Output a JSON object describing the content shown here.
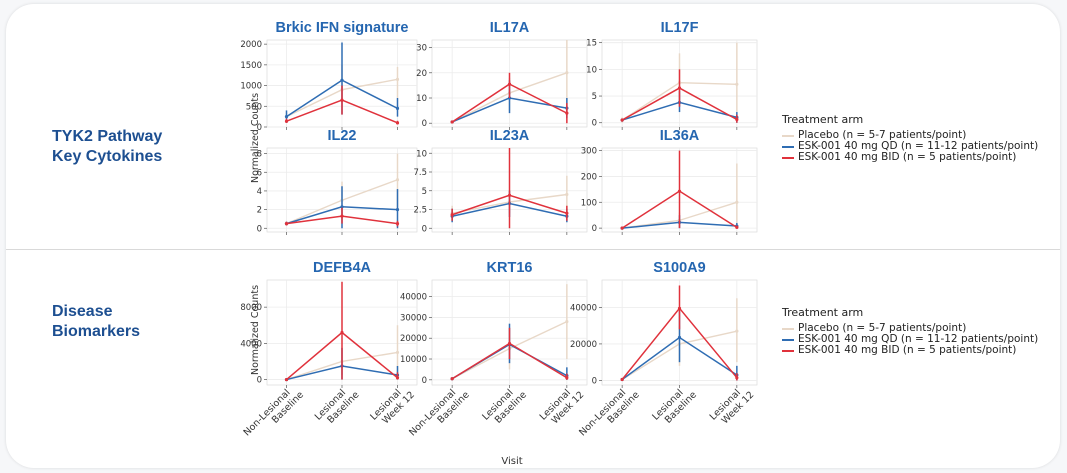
{
  "sections": [
    {
      "label": "TYK2 Pathway\nKey Cytokines"
    },
    {
      "label": "Disease\nBiomarkers"
    }
  ],
  "x_axis_title": "Visit",
  "y_axis_title": "Normalized Counts",
  "x_categories": [
    "Non-Lesional Baseline",
    "Lesional Baseline",
    "Lesional Week 12"
  ],
  "legend": {
    "title": "Treatment arm",
    "entries": [
      {
        "label": "Placebo (n = 5-7 patients/point)",
        "color": "#e8d8c8"
      },
      {
        "label": "ESK-001 40 mg QD (n = 11-12 patients/point)",
        "color": "#2f6db3"
      },
      {
        "label": "ESK-001 40 mg BID (n = 5 patients/point)",
        "color": "#e0323c"
      }
    ]
  },
  "chart_data": [
    {
      "type": "line",
      "title": "Brkic IFN signature",
      "categories": [
        "Non-Lesional Baseline",
        "Lesional Baseline",
        "Lesional Week 12"
      ],
      "ylim": [
        0,
        2100
      ],
      "yticks": [
        0,
        500,
        1000,
        1500,
        2000
      ],
      "series": [
        {
          "name": "Placebo (n = 5-7 patients/point)",
          "values": [
            250,
            900,
            1150
          ],
          "errors": [
            [
              200,
              350
            ],
            [
              600,
              1500
            ],
            [
              700,
              1450
            ]
          ]
        },
        {
          "name": "ESK-001 40 mg QD (n = 11-12 patients/point)",
          "values": [
            250,
            1130,
            450
          ],
          "errors": [
            [
              100,
              400
            ],
            [
              300,
              2040
            ],
            [
              250,
              700
            ]
          ]
        },
        {
          "name": "ESK-001 40 mg BID (n = 5 patients/point)",
          "values": [
            140,
            650,
            100
          ],
          "errors": [
            [
              100,
              200
            ],
            [
              300,
              1000
            ],
            [
              60,
              150
            ]
          ]
        }
      ]
    },
    {
      "type": "line",
      "title": "IL17A",
      "categories": [
        "Non-Lesional Baseline",
        "Lesional Baseline",
        "Lesional Week 12"
      ],
      "ylim": [
        -1.5,
        33
      ],
      "yticks": [
        0,
        10,
        20,
        30
      ],
      "series": [
        {
          "name": "Placebo (n = 5-7 patients/point)",
          "values": [
            0.5,
            12,
            20
          ],
          "errors": [
            [
              0,
              1
            ],
            [
              5,
              18
            ],
            [
              5,
              33
            ]
          ]
        },
        {
          "name": "ESK-001 40 mg QD (n = 11-12 patients/point)",
          "values": [
            0.5,
            10,
            6
          ],
          "errors": [
            [
              0,
              1
            ],
            [
              4,
              17
            ],
            [
              2,
              10
            ]
          ]
        },
        {
          "name": "ESK-001 40 mg BID (n = 5 patients/point)",
          "values": [
            0.5,
            15.5,
            4
          ],
          "errors": [
            [
              0,
              1
            ],
            [
              10,
              20
            ],
            [
              0,
              8
            ]
          ]
        }
      ]
    },
    {
      "type": "line",
      "title": "IL17F",
      "categories": [
        "Non-Lesional Baseline",
        "Lesional Baseline",
        "Lesional Week 12"
      ],
      "ylim": [
        -0.8,
        15.5
      ],
      "yticks": [
        0,
        5,
        10,
        15
      ],
      "series": [
        {
          "name": "Placebo (n = 5-7 patients/point)",
          "values": [
            0.5,
            7.5,
            7.2
          ],
          "errors": [
            [
              0,
              1
            ],
            [
              3,
              13
            ],
            [
              2,
              15
            ]
          ]
        },
        {
          "name": "ESK-001 40 mg QD (n = 11-12 patients/point)",
          "values": [
            0.5,
            3.8,
            1
          ],
          "errors": [
            [
              0.2,
              0.8
            ],
            [
              2,
              6
            ],
            [
              0,
              2
            ]
          ]
        },
        {
          "name": "ESK-001 40 mg BID (n = 5 patients/point)",
          "values": [
            0.5,
            6.5,
            0.6
          ],
          "errors": [
            [
              0.2,
              0.8
            ],
            [
              3,
              10
            ],
            [
              0,
              1.5
            ]
          ]
        }
      ]
    },
    {
      "type": "line",
      "title": "IL22",
      "categories": [
        "Non-Lesional Baseline",
        "Lesional Baseline",
        "Lesional Week 12"
      ],
      "ylim": [
        -0.4,
        8.6
      ],
      "yticks": [
        0,
        2,
        4,
        6,
        8
      ],
      "series": [
        {
          "name": "Placebo (n = 5-7 patients/point)",
          "values": [
            0.5,
            3,
            5.2
          ],
          "errors": [
            [
              0.3,
              0.7
            ],
            [
              1,
              5
            ],
            [
              2,
              8
            ]
          ]
        },
        {
          "name": "ESK-001 40 mg QD (n = 11-12 patients/point)",
          "values": [
            0.5,
            2.3,
            2
          ],
          "errors": [
            [
              0.3,
              0.7
            ],
            [
              0,
              4.5
            ],
            [
              0,
              4.2
            ]
          ]
        },
        {
          "name": "ESK-001 40 mg BID (n = 5 patients/point)",
          "values": [
            0.5,
            1.3,
            0.5
          ],
          "errors": [
            [
              0.3,
              0.7
            ],
            [
              0.5,
              2.2
            ],
            [
              0.2,
              0.8
            ]
          ]
        }
      ]
    },
    {
      "type": "line",
      "title": "IL23A",
      "categories": [
        "Non-Lesional Baseline",
        "Lesional Baseline",
        "Lesional Week 12"
      ],
      "ylim": [
        -0.5,
        10.7
      ],
      "yticks": [
        0,
        2.5,
        5,
        7.5,
        10
      ],
      "series": [
        {
          "name": "Placebo (n = 5-7 patients/point)",
          "values": [
            2,
            3.5,
            4.5
          ],
          "errors": [
            [
              1,
              3
            ],
            [
              2,
              5
            ],
            [
              2,
              7
            ]
          ]
        },
        {
          "name": "ESK-001 40 mg QD (n = 11-12 patients/point)",
          "values": [
            1.6,
            3.3,
            1.6
          ],
          "errors": [
            [
              0.8,
              2.6
            ],
            [
              1.5,
              5
            ],
            [
              0.8,
              2.6
            ]
          ]
        },
        {
          "name": "ESK-001 40 mg BID (n = 5 patients/point)",
          "values": [
            1.8,
            4.4,
            2
          ],
          "errors": [
            [
              1,
              2.6
            ],
            [
              0,
              10.7
            ],
            [
              1,
              3
            ]
          ]
        }
      ]
    },
    {
      "type": "line",
      "title": "IL36A",
      "categories": [
        "Non-Lesional Baseline",
        "Lesional Baseline",
        "Lesional Week 12"
      ],
      "ylim": [
        -15,
        310
      ],
      "yticks": [
        0,
        100,
        200,
        300
      ],
      "series": [
        {
          "name": "Placebo (n = 5-7 patients/point)",
          "values": [
            0,
            30,
            100
          ],
          "errors": [
            [
              0,
              5
            ],
            [
              5,
              60
            ],
            [
              20,
              250
            ]
          ]
        },
        {
          "name": "ESK-001 40 mg QD (n = 11-12 patients/point)",
          "values": [
            0,
            22,
            8
          ],
          "errors": [
            [
              0,
              5
            ],
            [
              0,
              50
            ],
            [
              0,
              20
            ]
          ]
        },
        {
          "name": "ESK-001 40 mg BID (n = 5 patients/point)",
          "values": [
            0,
            143,
            3
          ],
          "errors": [
            [
              0,
              5
            ],
            [
              0,
              300
            ],
            [
              0,
              10
            ]
          ]
        }
      ]
    },
    {
      "type": "line",
      "title": "DEFB4A",
      "categories": [
        "Non-Lesional Baseline",
        "Lesional Baseline",
        "Lesional Week 12"
      ],
      "ylim": [
        -600,
        11000
      ],
      "yticks": [
        0,
        4000,
        8000
      ],
      "series": [
        {
          "name": "Placebo (n = 5-7 patients/point)",
          "values": [
            0,
            2000,
            3000
          ],
          "errors": [
            [
              0,
              100
            ],
            [
              500,
              3500
            ],
            [
              500,
              6000
            ]
          ]
        },
        {
          "name": "ESK-001 40 mg QD (n = 11-12 patients/point)",
          "values": [
            0,
            1500,
            500
          ],
          "errors": [
            [
              0,
              100
            ],
            [
              0,
              3500
            ],
            [
              0,
              1500
            ]
          ]
        },
        {
          "name": "ESK-001 40 mg BID (n = 5 patients/point)",
          "values": [
            0,
            5200,
            200
          ],
          "errors": [
            [
              0,
              100
            ],
            [
              0,
              10800
            ],
            [
              0,
              800
            ]
          ]
        }
      ]
    },
    {
      "type": "line",
      "title": "KRT16",
      "categories": [
        "Non-Lesional Baseline",
        "Lesional Baseline",
        "Lesional Week 12"
      ],
      "ylim": [
        -2500,
        48000
      ],
      "yticks": [
        0,
        10000,
        20000,
        30000,
        40000
      ],
      "series": [
        {
          "name": "Placebo (n = 5-7 patients/point)",
          "values": [
            500,
            15000,
            28000
          ],
          "errors": [
            [
              0,
              1000
            ],
            [
              5000,
              25000
            ],
            [
              10000,
              46000
            ]
          ]
        },
        {
          "name": "ESK-001 40 mg QD (n = 11-12 patients/point)",
          "values": [
            500,
            17000,
            2000
          ],
          "errors": [
            [
              0,
              1000
            ],
            [
              8000,
              27000
            ],
            [
              0,
              6000
            ]
          ]
        },
        {
          "name": "ESK-001 40 mg BID (n = 5 patients/point)",
          "values": [
            500,
            17500,
            1000
          ],
          "errors": [
            [
              0,
              1000
            ],
            [
              10000,
              25000
            ],
            [
              0,
              3000
            ]
          ]
        }
      ]
    },
    {
      "type": "line",
      "title": "S100A9",
      "categories": [
        "Non-Lesional Baseline",
        "Lesional Baseline",
        "Lesional Week 12"
      ],
      "ylim": [
        -2500,
        55000
      ],
      "yticks": [
        0,
        20000,
        40000
      ],
      "series": [
        {
          "name": "Placebo (n = 5-7 patients/point)",
          "values": [
            500,
            20000,
            27000
          ],
          "errors": [
            [
              0,
              1000
            ],
            [
              8000,
              30000
            ],
            [
              10000,
              45000
            ]
          ]
        },
        {
          "name": "ESK-001 40 mg QD (n = 11-12 patients/point)",
          "values": [
            500,
            23500,
            3000
          ],
          "errors": [
            [
              0,
              1000
            ],
            [
              10000,
              38000
            ],
            [
              0,
              8000
            ]
          ]
        },
        {
          "name": "ESK-001 40 mg BID (n = 5 patients/point)",
          "values": [
            500,
            39500,
            1500
          ],
          "errors": [
            [
              0,
              1000
            ],
            [
              28000,
              52000
            ],
            [
              0,
              4000
            ]
          ]
        }
      ]
    }
  ]
}
